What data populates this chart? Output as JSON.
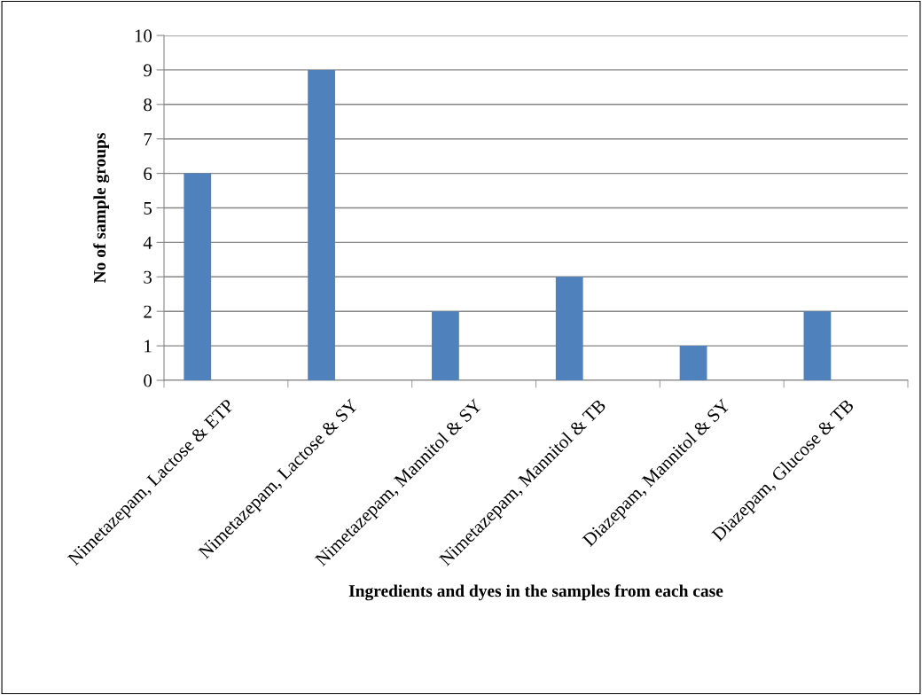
{
  "chart_data": {
    "type": "bar",
    "xlabel": "Ingredients and dyes in the samples from each case",
    "ylabel": "No of sample groups",
    "categories": [
      "Nimetazepam, Lactose & ETP",
      "Nimetazepam, Lactose & SY",
      "Nimetazepam, Mannitol & SY",
      "Nimetazepam, Mannitol & TB",
      "Diazepam, Mannitol & SY",
      "Diazepam, Glucose & TB"
    ],
    "values": [
      6,
      9,
      2,
      3,
      1,
      2
    ],
    "color": "#4f81bd",
    "ylim": [
      0,
      10
    ],
    "yticks": [
      0,
      1,
      2,
      3,
      4,
      5,
      6,
      7,
      8,
      9,
      10
    ],
    "grid": "y",
    "legend": false
  }
}
